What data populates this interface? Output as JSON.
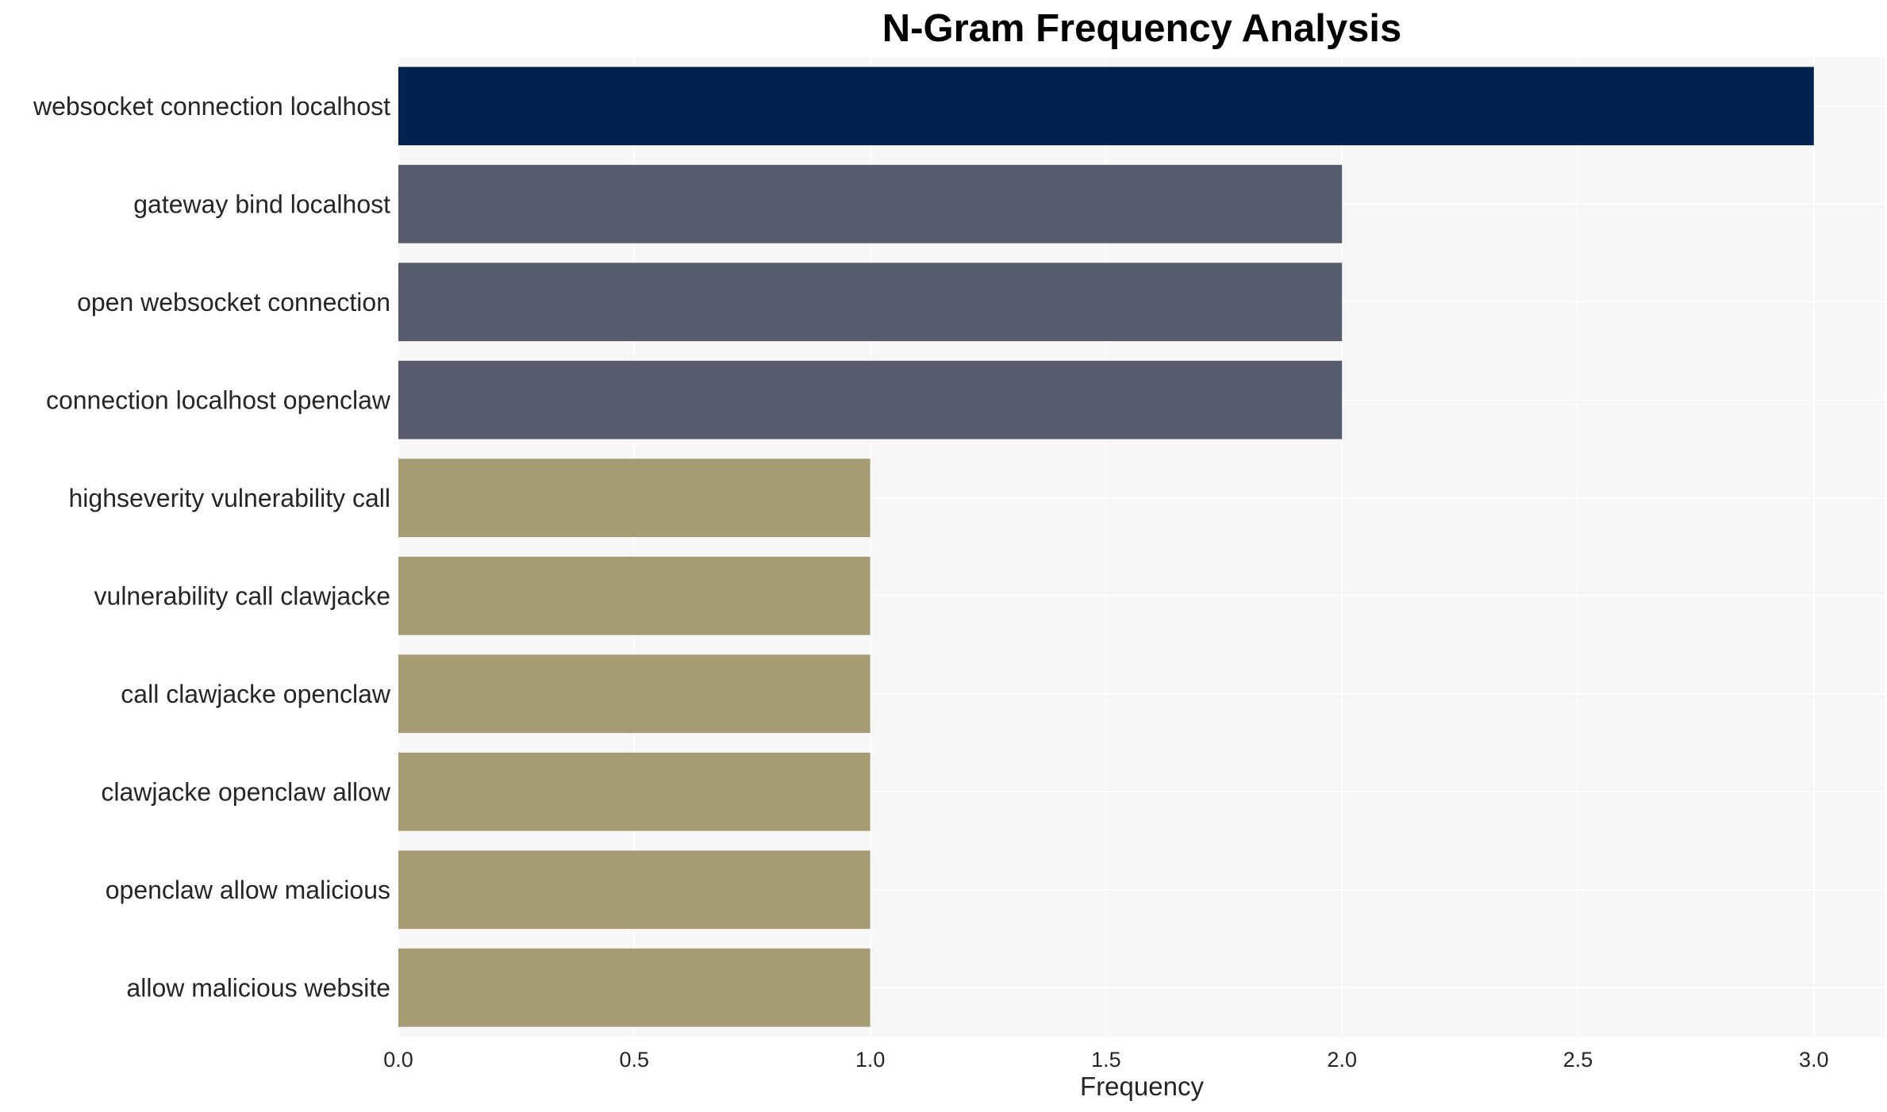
{
  "chart_data": {
    "type": "bar",
    "orientation": "horizontal",
    "title": "N-Gram Frequency Analysis",
    "xlabel": "Frequency",
    "ylabel": "",
    "categories": [
      "websocket connection localhost",
      "gateway bind localhost",
      "open websocket connection",
      "connection localhost openclaw",
      "highseverity vulnerability call",
      "vulnerability call clawjacke",
      "call clawjacke openclaw",
      "clawjacke openclaw allow",
      "openclaw allow malicious",
      "allow malicious website"
    ],
    "values": [
      3,
      2,
      2,
      2,
      1,
      1,
      1,
      1,
      1,
      1
    ],
    "bar_colors": [
      "#00224e",
      "#575d6d",
      "#575d6d",
      "#575d6d",
      "#a59c74",
      "#a59c74",
      "#a59c74",
      "#a59c74",
      "#a59c74",
      "#a59c74"
    ],
    "xlim": [
      0,
      3.15
    ],
    "xticks": [
      "0.0",
      "0.5",
      "1.0",
      "1.5",
      "2.0",
      "2.5",
      "3.0"
    ],
    "grid": true,
    "legend": "none",
    "background": "#f7f7f7",
    "grid_color": "#ffffff"
  }
}
